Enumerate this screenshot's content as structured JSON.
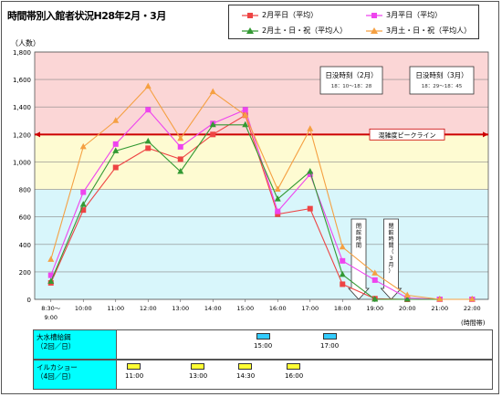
{
  "title": "時間帯別入館者状況H28年2月・3月",
  "colors": {
    "band_red": "#fbd6d6",
    "band_yellow": "#fefbd2",
    "band_blue": "#d8f6fb",
    "peak_line": "#cc0000",
    "schedule_label_bg": "#00ffff",
    "mark_blue": "#33ccff",
    "mark_yellow": "#ffff33"
  },
  "schedule": {
    "rows": [
      {
        "label_lines": [
          "大水槽給餌",
          "（2回／日）"
        ],
        "color": "#33ccff",
        "times": [
          "15:00",
          "17:00"
        ]
      },
      {
        "label_lines": [
          "イルカショー",
          "（4回／日）"
        ],
        "color": "#ffff33",
        "times": [
          "11:00",
          "13:00",
          "14:30",
          "16:00"
        ]
      }
    ]
  },
  "chart_data": {
    "type": "line",
    "title": "時間帯別入館者状況H28年2月・3月",
    "ylabel": "（人数）",
    "xlabel": "(時間帯)",
    "ylim": [
      0,
      1800
    ],
    "yticks": [
      "0",
      "200",
      "400",
      "600",
      "800",
      "1,000",
      "1,200",
      "1,400",
      "1,600",
      "1,800"
    ],
    "grid": true,
    "legend_position": "top-right",
    "categories": [
      "8:30～9:00",
      "10:00",
      "11:00",
      "12:00",
      "13:00",
      "14:00",
      "15:00",
      "16:00",
      "17:00",
      "18:00",
      "19:00",
      "20:00",
      "21:00",
      "22:00"
    ],
    "series": [
      {
        "name": "2月平日（平均）",
        "color": "#ee4444",
        "marker": "square",
        "values": [
          120,
          650,
          960,
          1100,
          1020,
          1200,
          1340,
          620,
          660,
          110,
          5,
          0,
          0,
          0
        ]
      },
      {
        "name": "3月平日（平均）",
        "color": "#ee44ee",
        "marker": "square",
        "values": [
          175,
          780,
          1130,
          1380,
          1110,
          1280,
          1380,
          640,
          910,
          280,
          140,
          10,
          0,
          0
        ]
      },
      {
        "name": "2月土・日・祝（平均人）",
        "color": "#339933",
        "marker": "triangle",
        "values": [
          130,
          690,
          1080,
          1150,
          930,
          1270,
          1270,
          730,
          930,
          180,
          0,
          0,
          0,
          0
        ]
      },
      {
        "name": "3月土・日・祝（平均人）",
        "color": "#f5a042",
        "marker": "triangle",
        "values": [
          290,
          1110,
          1300,
          1550,
          1170,
          1510,
          1340,
          800,
          1240,
          380,
          190,
          30,
          0,
          0
        ]
      }
    ],
    "bands": [
      {
        "from": 1200,
        "to": 1800,
        "color": "#fbd6d6"
      },
      {
        "from": 800,
        "to": 1200,
        "color": "#fefbd2"
      },
      {
        "from": 0,
        "to": 800,
        "color": "#d8f6fb"
      }
    ],
    "reference_line": {
      "value": 1200,
      "label": "混雑度ピークライン"
    },
    "annotations": [
      {
        "label": "日没時刻（2月）",
        "detail": "18：10～18：28"
      },
      {
        "label": "日没時刻（3月）",
        "detail": "18：29～18：45"
      }
    ],
    "closing_arrows": [
      {
        "label": "閉館時間",
        "x_index": 9.5
      },
      {
        "label": "閉館時間（3月）",
        "x_index": 10.5
      }
    ]
  }
}
